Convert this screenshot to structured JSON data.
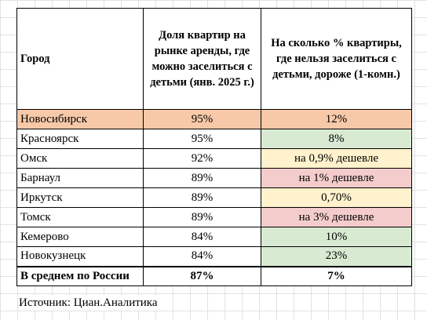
{
  "headers": {
    "city": "Город",
    "share": "Доля квартир на рынке аренды, где можно заселиться с детьми (янв. 2025 г.)",
    "price": "На сколько % квартиры, где нельзя заселиться с детьми, дороже (1-комн.)"
  },
  "rows": [
    {
      "city": "Новосибирск",
      "share": "95%",
      "price": "12%"
    },
    {
      "city": "Красноярск",
      "share": "95%",
      "price": "8%"
    },
    {
      "city": "Омск",
      "share": "92%",
      "price": "на 0,9% дешевле"
    },
    {
      "city": "Барнаул",
      "share": "89%",
      "price": "на 1% дешевле"
    },
    {
      "city": "Иркутск",
      "share": "89%",
      "price": "0,70%"
    },
    {
      "city": "Томск",
      "share": "89%",
      "price": "на 3% дешевле"
    },
    {
      "city": "Кемерово",
      "share": "84%",
      "price": "10%"
    },
    {
      "city": "Новокузнецк",
      "share": "84%",
      "price": "23%"
    }
  ],
  "total": {
    "city": "В среднем по России",
    "share": "87%",
    "price": "7%"
  },
  "source": "Источник: Циан.Аналитика",
  "colors": {
    "highlight_row": "#f8c9a8",
    "green": "#d9ead3",
    "yellow": "#fff2cc",
    "red": "#f4cccc"
  }
}
